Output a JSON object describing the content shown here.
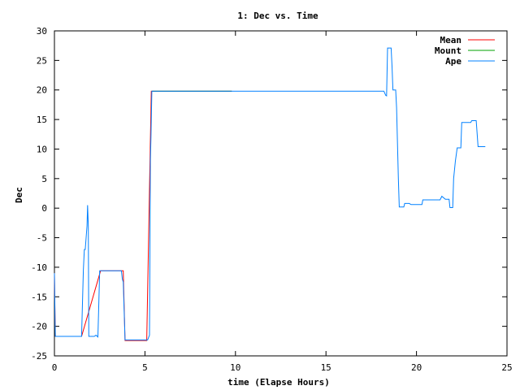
{
  "chart_data": {
    "type": "line",
    "title": "1: Dec vs. Time",
    "xlabel": "time (Elapse Hours)",
    "ylabel": "Dec",
    "xlim": [
      0,
      25
    ],
    "ylim": [
      -25,
      30
    ],
    "xticks": [
      0,
      5,
      10,
      15,
      20,
      25
    ],
    "yticks": [
      -25,
      -20,
      -15,
      -10,
      -5,
      0,
      5,
      10,
      15,
      20,
      25,
      30
    ],
    "grid": false,
    "legend_position": "top-right",
    "series": [
      {
        "name": "Mean",
        "color": "#ff0000",
        "points": [
          [
            0,
            -11
          ],
          [
            0.05,
            -21.7
          ],
          [
            1.5,
            -21.7
          ],
          [
            2.55,
            -10.6
          ],
          [
            3.8,
            -10.6
          ],
          [
            3.9,
            -22.4
          ],
          [
            5.1,
            -22.4
          ],
          [
            5.35,
            19.8
          ],
          [
            9.8,
            19.8
          ]
        ]
      },
      {
        "name": "Mount",
        "color": "#00a000",
        "points": [
          [
            5.4,
            19.8
          ],
          [
            9.8,
            19.8
          ]
        ]
      },
      {
        "name": "Ape",
        "color": "#0080ff",
        "points": [
          [
            0,
            -11
          ],
          [
            0.03,
            -18.5
          ],
          [
            0.05,
            -21.7
          ],
          [
            1.5,
            -21.7
          ],
          [
            1.6,
            -10.5
          ],
          [
            1.65,
            -7
          ],
          [
            1.7,
            -7
          ],
          [
            1.75,
            -5
          ],
          [
            1.8,
            -3
          ],
          [
            1.83,
            0.5
          ],
          [
            1.87,
            -3
          ],
          [
            1.9,
            -21.7
          ],
          [
            2.2,
            -21.7
          ],
          [
            2.3,
            -21.5
          ],
          [
            2.4,
            -21.8
          ],
          [
            2.5,
            -10.6
          ],
          [
            3.7,
            -10.6
          ],
          [
            3.75,
            -12
          ],
          [
            3.8,
            -12.5
          ],
          [
            3.9,
            -22.3
          ],
          [
            5.15,
            -22.3
          ],
          [
            5.25,
            -21.5
          ],
          [
            5.3,
            8
          ],
          [
            5.33,
            12
          ],
          [
            5.38,
            19.8
          ],
          [
            18.2,
            19.8
          ],
          [
            18.3,
            19.1
          ],
          [
            18.35,
            19
          ],
          [
            18.4,
            27.1
          ],
          [
            18.6,
            27.1
          ],
          [
            18.65,
            24
          ],
          [
            18.7,
            20
          ],
          [
            18.85,
            20
          ],
          [
            18.9,
            17
          ],
          [
            19.0,
            5
          ],
          [
            19.05,
            0.2
          ],
          [
            19.3,
            0.2
          ],
          [
            19.35,
            0.8
          ],
          [
            19.6,
            0.8
          ],
          [
            19.7,
            0.6
          ],
          [
            20.3,
            0.6
          ],
          [
            20.35,
            1.4
          ],
          [
            21.3,
            1.4
          ],
          [
            21.4,
            2.0
          ],
          [
            21.6,
            1.5
          ],
          [
            21.8,
            1.5
          ],
          [
            21.85,
            0.1
          ],
          [
            22.0,
            0.1
          ],
          [
            22.05,
            5
          ],
          [
            22.15,
            8
          ],
          [
            22.25,
            10.2
          ],
          [
            22.45,
            10.2
          ],
          [
            22.5,
            14.5
          ],
          [
            23.0,
            14.5
          ],
          [
            23.05,
            14.8
          ],
          [
            23.3,
            14.8
          ],
          [
            23.4,
            10.4
          ],
          [
            23.8,
            10.4
          ]
        ]
      }
    ]
  }
}
